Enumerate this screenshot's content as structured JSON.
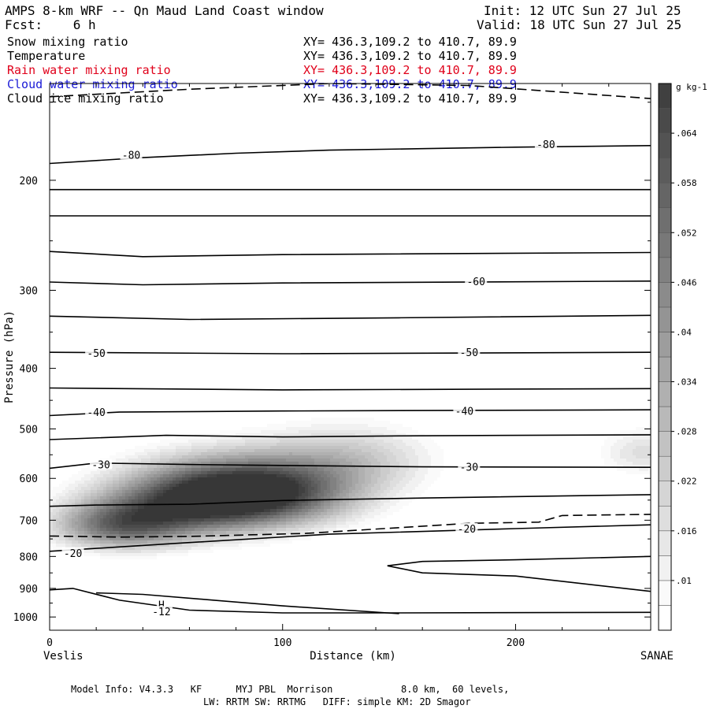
{
  "header": {
    "title": "AMPS 8-km WRF -- Qn Maud Land Coast window",
    "init": "Init: 12 UTC Sun 27 Jul 25",
    "fcst": "Fcst:    6 h",
    "valid": "Valid: 18 UTC Sun 27 Jul 25"
  },
  "fields": [
    {
      "name": "Snow mixing ratio",
      "xy": "XY= 436.3,109.2 to 410.7, 89.9",
      "color": "#000000"
    },
    {
      "name": "Temperature",
      "xy": "XY= 436.3,109.2 to 410.7, 89.9",
      "color": "#000000"
    },
    {
      "name": "Rain water mixing ratio",
      "xy": "XY= 436.3,109.2 to 410.7, 89.9",
      "color": "#e0001a"
    },
    {
      "name": "Cloud water mixing ratio",
      "xy": "XY= 436.3,109.2 to 410.7, 89.9",
      "color": "#1a1ad6"
    },
    {
      "name": "Cloud ice mixing ratio",
      "xy": "XY= 436.3,109.2 to 410.7, 89.9",
      "color": "#000000"
    }
  ],
  "footer": {
    "line1": "Model Info: V4.3.3   KF      MYJ PBL  Morrison            8.0 km,  60 levels,",
    "line2": "LW: RRTM SW: RRTMG   DIFF: simple KM: 2D Smagor"
  },
  "chart_data": {
    "type": "heatmap",
    "xlabel": "Distance (km)",
    "ylabel": "Pressure (hPa)",
    "xlim": [
      0,
      258
    ],
    "ylim": [
      1050,
      140
    ],
    "y_scale": "log",
    "x_ticks": [
      0,
      100,
      200
    ],
    "y_ticks": [
      200,
      300,
      400,
      500,
      600,
      700,
      800,
      900,
      1000
    ],
    "endpoints": {
      "left": "Veslis",
      "right": "SANAE"
    },
    "colorbar": {
      "unit": "g kg-1",
      "labels": [
        ".01",
        ".016",
        ".022",
        ".028",
        ".034",
        ".04",
        ".046",
        ".052",
        ".058",
        ".064"
      ],
      "levels": [
        0.007,
        0.01,
        0.013,
        0.016,
        0.019,
        0.022,
        0.025,
        0.028,
        0.031,
        0.034,
        0.037,
        0.04,
        0.043,
        0.046,
        0.049,
        0.052,
        0.055,
        0.058,
        0.061,
        0.064,
        0.067,
        0.07
      ]
    },
    "snow_field": {
      "blobs": [
        {
          "x": 30,
          "p": 715,
          "sx": 20,
          "sp": 45,
          "amp": 0.046
        },
        {
          "x": 88,
          "p": 630,
          "sx": 30,
          "sp": 55,
          "amp": 0.07
        },
        {
          "x": 60,
          "p": 660,
          "sx": 28,
          "sp": 60,
          "amp": 0.04
        },
        {
          "x": 130,
          "p": 555,
          "sx": 26,
          "sp": 50,
          "amp": 0.02
        },
        {
          "x": 255,
          "p": 545,
          "sx": 14,
          "sp": 35,
          "amp": 0.017
        }
      ]
    },
    "isotherms": [
      {
        "x": [
          0,
          40,
          80,
          120,
          160,
          200,
          258
        ],
        "p": [
          188,
          184,
          181,
          179,
          178,
          177,
          176
        ]
      },
      {
        "x": [
          0,
          258
        ],
        "p": [
          207,
          207
        ]
      },
      {
        "x": [
          0,
          258
        ],
        "p": [
          228,
          228
        ]
      },
      {
        "x": [
          0,
          40,
          100,
          258
        ],
        "p": [
          260,
          265,
          263,
          261
        ]
      },
      {
        "x": [
          0,
          40,
          100,
          258
        ],
        "p": [
          291,
          294,
          292,
          290
        ]
      },
      {
        "x": [
          0,
          60,
          150,
          258
        ],
        "p": [
          330,
          334,
          332,
          329
        ]
      },
      {
        "x": [
          0,
          100,
          258
        ],
        "p": [
          377,
          379,
          377
        ]
      },
      {
        "x": [
          0,
          100,
          258
        ],
        "p": [
          430,
          433,
          431
        ]
      },
      {
        "x": [
          0,
          30,
          100,
          258
        ],
        "p": [
          476,
          470,
          468,
          466
        ]
      },
      {
        "x": [
          0,
          50,
          100,
          150,
          258
        ],
        "p": [
          520,
          512,
          515,
          513,
          511
        ]
      },
      {
        "x": [
          0,
          20,
          60,
          100,
          160,
          258
        ],
        "p": [
          578,
          567,
          570,
          572,
          575,
          576
        ]
      },
      {
        "x": [
          0,
          20,
          60,
          100,
          160,
          258
        ],
        "p": [
          665,
          662,
          660,
          651,
          645,
          637
        ]
      },
      {
        "x": [
          0,
          60,
          120,
          200,
          258
        ],
        "p": [
          785,
          760,
          737,
          722,
          712
        ]
      },
      {
        "x": [
          145,
          160,
          200,
          258
        ],
        "p": [
          828,
          815,
          810,
          800
        ]
      },
      {
        "x": [
          145,
          160,
          200,
          258
        ],
        "p": [
          828,
          850,
          860,
          910
        ]
      },
      {
        "x": [
          0,
          10,
          30,
          60,
          100,
          150,
          258
        ],
        "p": [
          905,
          900,
          940,
          975,
          985,
          985,
          983
        ]
      },
      {
        "x": [
          20,
          40,
          100,
          150
        ],
        "p": [
          915,
          920,
          960,
          988
        ]
      }
    ],
    "dashed_lines": [
      {
        "x": [
          0,
          60,
          120,
          180,
          258
        ],
        "p": [
          147,
          143,
          140,
          141,
          148
        ]
      },
      {
        "x": [
          0,
          30,
          60,
          110,
          180,
          210,
          220,
          258
        ],
        "p": [
          742,
          745,
          743,
          735,
          708,
          705,
          688,
          685
        ]
      }
    ],
    "contour_labels": [
      {
        "text": "-80",
        "x": 35,
        "p": 182
      },
      {
        "text": "-80",
        "x": 213,
        "p": 175
      },
      {
        "text": "-60",
        "x": 183,
        "p": 290
      },
      {
        "text": "-50",
        "x": 20,
        "p": 378
      },
      {
        "text": "-50",
        "x": 180,
        "p": 377
      },
      {
        "text": "-40",
        "x": 20,
        "p": 470
      },
      {
        "text": "-40",
        "x": 178,
        "p": 468
      },
      {
        "text": "-30",
        "x": 22,
        "p": 570
      },
      {
        "text": "-30",
        "x": 180,
        "p": 575
      },
      {
        "text": "-20",
        "x": 10,
        "p": 790
      },
      {
        "text": "-20",
        "x": 179,
        "p": 722
      },
      {
        "text": "H",
        "x": 48,
        "p": 955
      },
      {
        "text": "-12",
        "x": 48,
        "p": 980
      }
    ]
  }
}
